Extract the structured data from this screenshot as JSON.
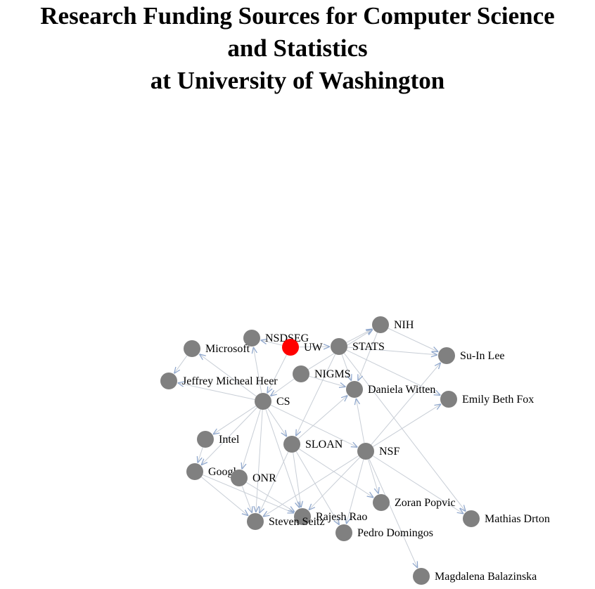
{
  "title": {
    "line1": "Research Funding Sources for Computer Science",
    "line2": "and Statistics",
    "line3": "at University of Washington"
  },
  "colors": {
    "node": "#808080",
    "highlight": "#ff0000",
    "edge": "#c8ced6",
    "arrow": "#8ea6cc"
  },
  "nodes": [
    {
      "id": "NIH",
      "label": "NIH"
    },
    {
      "id": "NSDSEG",
      "label": "NSDSEG"
    },
    {
      "id": "UW",
      "label": "UW",
      "highlight": true
    },
    {
      "id": "STATS",
      "label": "STATS"
    },
    {
      "id": "Microsoft",
      "label": "Microsoft"
    },
    {
      "id": "SuInLee",
      "label": "Su-In Lee"
    },
    {
      "id": "NIGMS",
      "label": "NIGMS"
    },
    {
      "id": "JeffreyHeer",
      "label": "Jeffrey Micheal Heer"
    },
    {
      "id": "DanielaWitten",
      "label": "Daniela Witten"
    },
    {
      "id": "CS",
      "label": "CS"
    },
    {
      "id": "EmilyFox",
      "label": "Emily Beth Fox"
    },
    {
      "id": "Intel",
      "label": "Intel"
    },
    {
      "id": "SLOAN",
      "label": "SLOAN"
    },
    {
      "id": "NSF",
      "label": "NSF"
    },
    {
      "id": "Google",
      "label": "Google"
    },
    {
      "id": "ONR",
      "label": "ONR"
    },
    {
      "id": "ZoranPopvic",
      "label": "Zoran Popvic"
    },
    {
      "id": "RajeshRao",
      "label": "Rajesh Rao"
    },
    {
      "id": "MathiasDrton",
      "label": "Mathias Drton"
    },
    {
      "id": "StevenSeitz",
      "label": "Steven Seitz"
    },
    {
      "id": "PedroDomingos",
      "label": "Pedro Domingos"
    },
    {
      "id": "MagdalenaBalazinska",
      "label": "Magdalena Balazinska"
    }
  ],
  "edges": [
    [
      "UW",
      "NSDSEG"
    ],
    [
      "UW",
      "STATS"
    ],
    [
      "UW",
      "CS"
    ],
    [
      "STATS",
      "NIH"
    ],
    [
      "STATS",
      "DanielaWitten"
    ],
    [
      "STATS",
      "EmilyFox"
    ],
    [
      "STATS",
      "SuInLee"
    ],
    [
      "STATS",
      "MathiasDrton"
    ],
    [
      "STATS",
      "SLOAN"
    ],
    [
      "NIH",
      "SuInLee"
    ],
    [
      "NIH",
      "DanielaWitten"
    ],
    [
      "NIGMS",
      "NIH"
    ],
    [
      "NIGMS",
      "DanielaWitten"
    ],
    [
      "NIGMS",
      "CS"
    ],
    [
      "Microsoft",
      "JeffreyHeer"
    ],
    [
      "CS",
      "JeffreyHeer"
    ],
    [
      "CS",
      "NSDSEG"
    ],
    [
      "CS",
      "Intel"
    ],
    [
      "CS",
      "Google"
    ],
    [
      "CS",
      "ONR"
    ],
    [
      "CS",
      "SLOAN"
    ],
    [
      "CS",
      "NSF"
    ],
    [
      "CS",
      "StevenSeitz"
    ],
    [
      "CS",
      "RajeshRao"
    ],
    [
      "CS",
      "Microsoft"
    ],
    [
      "Intel",
      "Google"
    ],
    [
      "Google",
      "StevenSeitz"
    ],
    [
      "Google",
      "RajeshRao"
    ],
    [
      "ONR",
      "StevenSeitz"
    ],
    [
      "ONR",
      "RajeshRao"
    ],
    [
      "SLOAN",
      "DanielaWitten"
    ],
    [
      "SLOAN",
      "RajeshRao"
    ],
    [
      "SLOAN",
      "StevenSeitz"
    ],
    [
      "SLOAN",
      "PedroDomingos"
    ],
    [
      "SLOAN",
      "ZoranPopvic"
    ],
    [
      "NSF",
      "DanielaWitten"
    ],
    [
      "NSF",
      "EmilyFox"
    ],
    [
      "NSF",
      "StevenSeitz"
    ],
    [
      "NSF",
      "PedroDomingos"
    ],
    [
      "NSF",
      "ZoranPopvic"
    ],
    [
      "NSF",
      "RajeshRao"
    ],
    [
      "NSF",
      "MagdalenaBalazinska"
    ],
    [
      "NSF",
      "MathiasDrton"
    ],
    [
      "NSF",
      "SuInLee"
    ]
  ]
}
